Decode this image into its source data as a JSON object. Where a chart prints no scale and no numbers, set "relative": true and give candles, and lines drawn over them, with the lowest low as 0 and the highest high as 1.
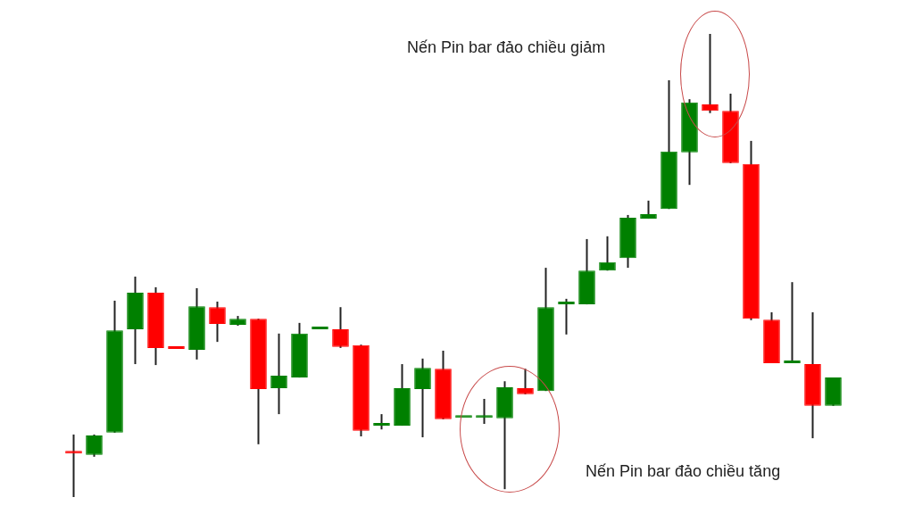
{
  "chart_data": {
    "type": "candlestick",
    "relative": true,
    "annotations": [
      "Nến Pin bar đảo chiều giảm",
      "Nến Pin bar đảo chiều tăng"
    ],
    "categories": [
      null,
      null,
      null,
      null,
      null,
      null,
      null,
      null,
      null,
      null,
      null,
      null,
      null,
      null,
      null,
      null,
      null,
      null,
      null,
      null,
      null,
      null,
      null,
      null,
      null,
      null,
      null,
      null,
      null,
      null,
      null,
      null,
      null,
      null,
      null,
      null,
      null,
      null
    ],
    "ohlc": [
      [
        0.098,
        0.135,
        0,
        0.094
      ],
      [
        0.091,
        0.135,
        0.087,
        0.133
      ],
      [
        0.139,
        0.424,
        0.139,
        0.36
      ],
      [
        0.362,
        0.476,
        0.287,
        0.441
      ],
      [
        0.441,
        0.453,
        0.285,
        0.322
      ],
      [
        0.322,
        0.322,
        0.32,
        0.32
      ],
      [
        0.318,
        0.451,
        0.297,
        0.412
      ],
      [
        0.41,
        0.422,
        0.335,
        0.374
      ],
      [
        0.372,
        0.391,
        0.37,
        0.385
      ],
      [
        0.385,
        0.385,
        0.114,
        0.233
      ],
      [
        0.235,
        0.353,
        0.179,
        0.262
      ],
      [
        0.258,
        0.376,
        0.258,
        0.353
      ],
      [
        0.362,
        0.362,
        0.362,
        0.362
      ],
      [
        0.362,
        0.41,
        0.322,
        0.324
      ],
      [
        0.328,
        0.329,
        0.131,
        0.143
      ],
      [
        0.154,
        0.179,
        0.146,
        0.154
      ],
      [
        0.154,
        0.287,
        0.154,
        0.235
      ],
      [
        0.233,
        0.299,
        0.129,
        0.279
      ],
      [
        0.277,
        0.316,
        0.168,
        0.168
      ],
      [
        0.171,
        0.171,
        0.171,
        0.171
      ],
      [
        0.171,
        0.212,
        0.158,
        0.171
      ],
      [
        0.17,
        0.25,
        0.017,
        0.237
      ],
      [
        0.235,
        0.277,
        0.222,
        0.222
      ],
      [
        0.229,
        0.495,
        0.229,
        0.41
      ],
      [
        0.416,
        0.428,
        0.351,
        0.416
      ],
      [
        0.416,
        0.557,
        0.416,
        0.489
      ],
      [
        0.489,
        0.563,
        0.489,
        0.507
      ],
      [
        0.516,
        0.609,
        0.495,
        0.603
      ],
      [
        0.601,
        0.64,
        0.601,
        0.611
      ],
      [
        0.622,
        0.9,
        0.622,
        0.746
      ],
      [
        0.744,
        0.859,
        0.674,
        0.852
      ],
      [
        0.848,
        1,
        0.829,
        0.834
      ],
      [
        0.834,
        0.871,
        0.721,
        0.721
      ],
      [
        0.719,
        0.769,
        0.382,
        0.385
      ],
      [
        0.383,
        0.399,
        0.289,
        0.289
      ],
      [
        0.289,
        0.464,
        0.289,
        0.289
      ],
      [
        0.287,
        0.399,
        0.127,
        0.197
      ],
      [
        0.197,
        0.258,
        0.197,
        0.258
      ]
    ],
    "colors": [
      "#ff0000",
      "#008000",
      "#008000",
      "#008000",
      "#ff0000",
      "#ff0000",
      "#008000",
      "#ff0000",
      "#008000",
      "#ff0000",
      "#008000",
      "#008000",
      "#008000",
      "#ff0000",
      "#ff0000",
      "#008000",
      "#008000",
      "#008000",
      "#ff0000",
      "#008000",
      "#008000",
      "#008000",
      "#ff0000",
      "#008000",
      "#008000",
      "#008000",
      "#008000",
      "#008000",
      "#008000",
      "#008000",
      "#008000",
      "#ff0000",
      "#ff0000",
      "#ff0000",
      "#ff0000",
      "#008000",
      "#ff0000",
      "#008000"
    ]
  }
}
